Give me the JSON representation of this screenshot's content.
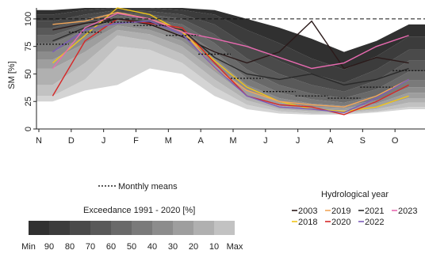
{
  "chart_data": {
    "type": "line",
    "ylabel": "SM [%]",
    "ylim": [
      0,
      110
    ],
    "y_ticks": [
      0,
      25,
      50,
      75,
      100
    ],
    "y_tick_labels": [
      "0",
      "25",
      "50",
      "75",
      "100"
    ],
    "x_ticks": [
      "N",
      "D",
      "J",
      "F",
      "M",
      "A",
      "M",
      "J",
      "J",
      "A",
      "S",
      "O"
    ],
    "dashed_reference_line": 100,
    "exceedance_bands": {
      "title": "Exceedance  1991 - 2020 [%]",
      "labels": [
        "Min",
        "90",
        "80",
        "70",
        "60",
        "50",
        "40",
        "30",
        "20",
        "10",
        "Max"
      ],
      "colors": [
        "#303030",
        "#3c3c3c",
        "#4a4a4a",
        "#595959",
        "#696969",
        "#7a7a7a",
        "#8c8c8c",
        "#9e9e9e",
        "#b0b0b0",
        "#c2c2c2",
        "#d4d4d4"
      ],
      "quantiles_by_month": [
        [
          25,
          30,
          40,
          55,
          63,
          70,
          78,
          85,
          92,
          98,
          104,
          108
        ],
        [
          35,
          45,
          60,
          70,
          78,
          84,
          90,
          95,
          100,
          104,
          108,
          110
        ],
        [
          40,
          75,
          85,
          90,
          94,
          97,
          100,
          103,
          106,
          108,
          110,
          110
        ],
        [
          55,
          72,
          80,
          86,
          90,
          94,
          97,
          100,
          104,
          107,
          110,
          110
        ],
        [
          50,
          60,
          68,
          75,
          80,
          85,
          90,
          95,
          100,
          104,
          108,
          110
        ],
        [
          30,
          38,
          45,
          52,
          58,
          64,
          70,
          78,
          86,
          95,
          104,
          108
        ],
        [
          18,
          22,
          26,
          30,
          35,
          40,
          46,
          54,
          64,
          76,
          90,
          100
        ],
        [
          14,
          16,
          18,
          21,
          24,
          28,
          33,
          40,
          50,
          62,
          78,
          92
        ],
        [
          13,
          14,
          16,
          18,
          20,
          23,
          27,
          32,
          40,
          50,
          64,
          82
        ],
        [
          13,
          14,
          15,
          17,
          19,
          21,
          24,
          28,
          34,
          42,
          54,
          70
        ],
        [
          15,
          16,
          18,
          20,
          23,
          26,
          30,
          36,
          44,
          54,
          66,
          80
        ],
        [
          18,
          20,
          24,
          28,
          33,
          38,
          44,
          52,
          62,
          72,
          84,
          95
        ]
      ]
    },
    "monthly_means": {
      "label": "Monthly means",
      "values": [
        77,
        88,
        97,
        94,
        85,
        68,
        46,
        34,
        30,
        28,
        38,
        53
      ]
    },
    "legend": {
      "title": "Hydrological year",
      "series_order": [
        "2003",
        "2019",
        "2021",
        "2023",
        "2018",
        "2020",
        "2022"
      ]
    },
    "series": [
      {
        "name": "2003",
        "color": "#2b1a1a",
        "values": [
          90,
          96,
          100,
          95,
          84,
          70,
          60,
          70,
          98,
          55,
          65,
          60
        ]
      },
      {
        "name": "2018",
        "color": "#f0c419",
        "values": [
          60,
          85,
          110,
          104,
          88,
          62,
          38,
          25,
          18,
          16,
          20,
          30
        ]
      },
      {
        "name": "2019",
        "color": "#f2a65a",
        "values": [
          95,
          98,
          106,
          100,
          90,
          55,
          35,
          25,
          22,
          20,
          30,
          45
        ]
      },
      {
        "name": "2020",
        "color": "#d62828",
        "values": [
          30,
          80,
          100,
          96,
          92,
          60,
          30,
          22,
          20,
          13,
          25,
          40
        ]
      },
      {
        "name": "2021",
        "color": "#2a2a2a",
        "values": [
          80,
          92,
          100,
          97,
          90,
          65,
          50,
          45,
          50,
          40,
          45,
          55
        ]
      },
      {
        "name": "2022",
        "color": "#7b5cb8",
        "values": [
          70,
          90,
          96,
          98,
          86,
          56,
          30,
          20,
          18,
          15,
          28,
          45
        ]
      },
      {
        "name": "2023",
        "color": "#e86ab0",
        "values": [
          55,
          92,
          105,
          100,
          88,
          82,
          75,
          65,
          55,
          60,
          75,
          85
        ]
      }
    ]
  }
}
